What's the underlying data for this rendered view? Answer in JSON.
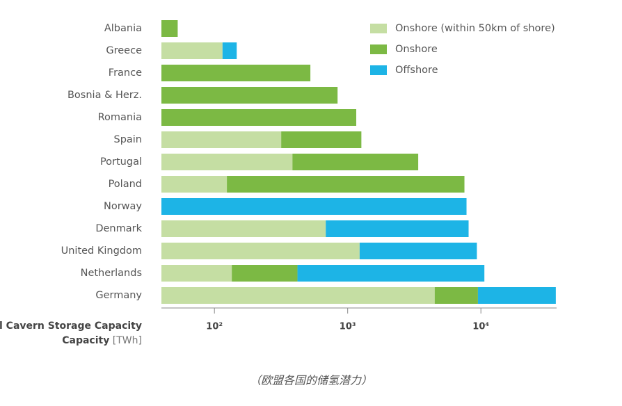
{
  "chart_data": {
    "type": "stacked_barh",
    "categories": [
      "Albania",
      "Greece",
      "France",
      "Bosnia & Herz.",
      "Romania",
      "Spain",
      "Portugal",
      "Poland",
      "Norway",
      "Denmark",
      "United Kingdom",
      "Netherlands",
      "Germany"
    ],
    "series": [
      {
        "name": "Onshore (within 50km of shore)",
        "color": "#c5dea3",
        "values": [
          null,
          115,
          null,
          null,
          null,
          317,
          385,
          124,
          null,
          685,
          1230,
          135,
          4500
        ]
      },
      {
        "name": "Onshore",
        "color": "#7cb944",
        "values": [
          53,
          null,
          525,
          840,
          1160,
          950,
          3000,
          7400,
          null,
          null,
          null,
          285,
          5000
        ]
      },
      {
        "name": "Offshore",
        "color": "#1db4e6",
        "values": [
          null,
          32,
          null,
          null,
          null,
          null,
          null,
          null,
          7800,
          7400,
          8100,
          10200,
          27000
        ]
      }
    ],
    "xscale": "log",
    "xlim": [
      40,
      37000
    ],
    "xticks": [
      {
        "value": 100,
        "label": "10²"
      },
      {
        "value": 1000,
        "label": "10³"
      },
      {
        "value": 10000,
        "label": "10⁴"
      }
    ],
    "xlabel": "Total Cavern Storage Capacity",
    "xlabel_cont": "Capacity",
    "xlabel_unit": "[TWh]",
    "caption": "（欧盟各国的储氢潜力）"
  }
}
